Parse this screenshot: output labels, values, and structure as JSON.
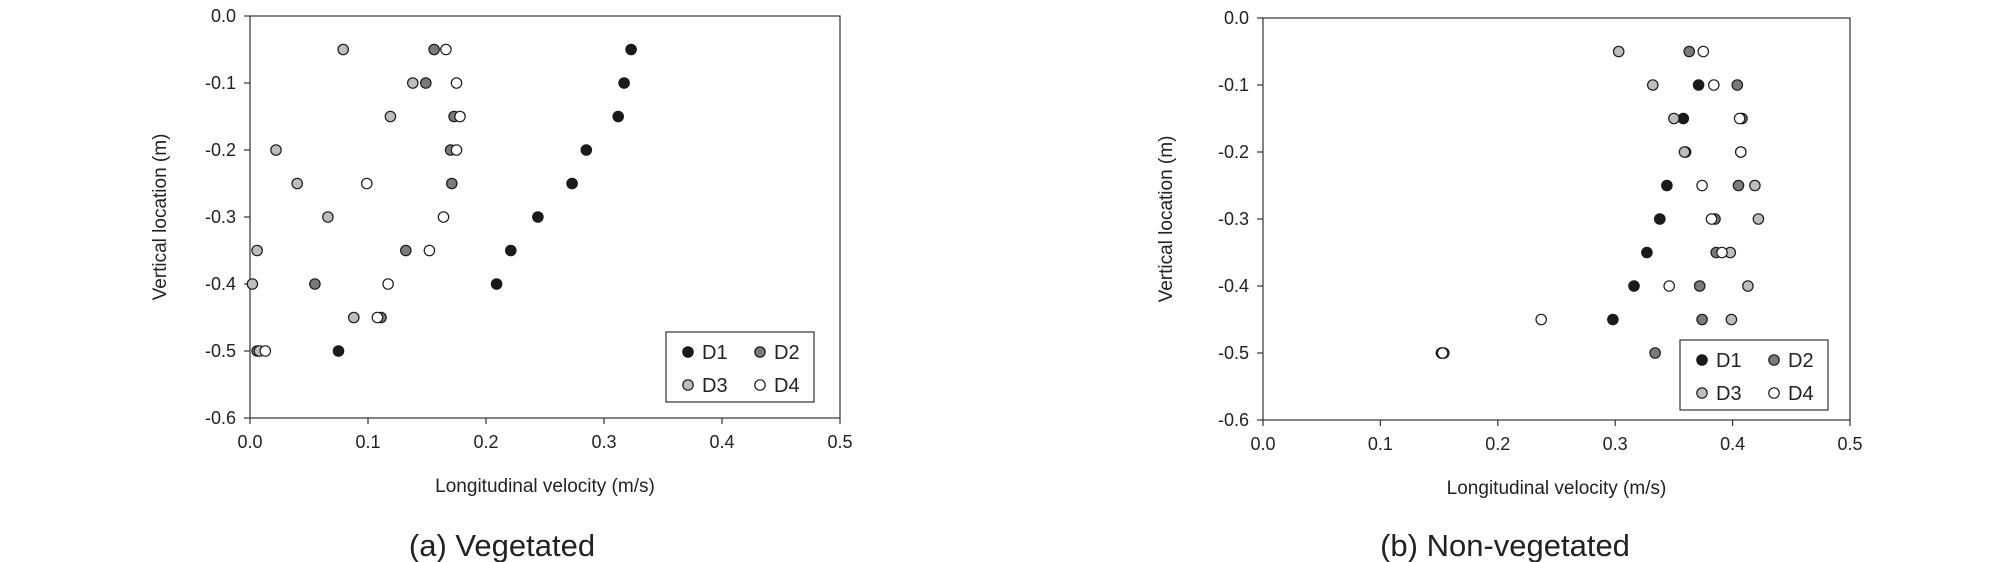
{
  "chart_data": [
    {
      "type": "scatter",
      "caption": "(a) Vegetated",
      "xlabel": "Longitudinal velocity (m/s)",
      "ylabel": "Vertical location (m)",
      "xlim": [
        0.0,
        0.5
      ],
      "ylim": [
        -0.6,
        0.0
      ],
      "xticks": [
        "0.0",
        "0.1",
        "0.2",
        "0.3",
        "0.4",
        "0.5"
      ],
      "yticks": [
        "0.0",
        "-0.1",
        "-0.2",
        "-0.3",
        "-0.4",
        "-0.5",
        "-0.6"
      ],
      "grid": false,
      "legend_position": "bottom-right",
      "series": [
        {
          "name": "D1",
          "color": "#1a1a1a",
          "y": [
            -0.05,
            -0.1,
            -0.15,
            -0.2,
            -0.25,
            -0.3,
            -0.35,
            -0.4,
            -0.5
          ],
          "x": [
            0.323,
            0.317,
            0.312,
            0.285,
            0.273,
            0.244,
            0.221,
            0.209,
            0.075
          ]
        },
        {
          "name": "D2",
          "color": "#7a7a7a",
          "y": [
            -0.05,
            -0.1,
            -0.15,
            -0.2,
            -0.25,
            -0.35,
            -0.4,
            -0.45,
            -0.5
          ],
          "x": [
            0.156,
            0.149,
            0.173,
            0.17,
            0.171,
            0.132,
            0.055,
            0.111,
            0.006
          ]
        },
        {
          "name": "D3",
          "color": "#bdbdbd",
          "y": [
            -0.05,
            -0.1,
            -0.15,
            -0.2,
            -0.25,
            -0.3,
            -0.35,
            -0.4,
            -0.45,
            -0.5
          ],
          "x": [
            0.079,
            0.138,
            0.119,
            0.022,
            0.04,
            0.066,
            0.006,
            0.002,
            0.088,
            0.008
          ]
        },
        {
          "name": "D4",
          "color": "#ffffff",
          "y": [
            -0.05,
            -0.1,
            -0.15,
            -0.2,
            -0.25,
            -0.3,
            -0.35,
            -0.4,
            -0.45,
            -0.5
          ],
          "x": [
            0.166,
            0.175,
            0.178,
            0.175,
            0.099,
            0.164,
            0.152,
            0.117,
            0.108,
            0.013
          ]
        }
      ]
    },
    {
      "type": "scatter",
      "caption": "(b) Non-vegetated",
      "xlabel": "Longitudinal velocity (m/s)",
      "ylabel": "Vertical location (m)",
      "xlim": [
        0.0,
        0.5
      ],
      "ylim": [
        -0.6,
        0.0
      ],
      "xticks": [
        "0.0",
        "0.1",
        "0.2",
        "0.3",
        "0.4",
        "0.5"
      ],
      "yticks": [
        "0.0",
        "-0.1",
        "-0.2",
        "-0.3",
        "-0.4",
        "-0.5",
        "-0.6"
      ],
      "grid": false,
      "legend_position": "bottom-right",
      "series": [
        {
          "name": "D1",
          "color": "#1a1a1a",
          "y": [
            -0.1,
            -0.15,
            -0.2,
            -0.25,
            -0.3,
            -0.35,
            -0.4,
            -0.45,
            -0.5
          ],
          "x": [
            0.371,
            0.358,
            0.36,
            0.344,
            0.338,
            0.327,
            0.316,
            0.298,
            0.152
          ]
        },
        {
          "name": "D2",
          "color": "#7a7a7a",
          "y": [
            -0.05,
            -0.1,
            -0.15,
            -0.2,
            -0.25,
            -0.3,
            -0.35,
            -0.4,
            -0.45,
            -0.5
          ],
          "x": [
            0.363,
            0.404,
            0.408,
            0.407,
            0.405,
            0.385,
            0.386,
            0.372,
            0.374,
            0.334
          ]
        },
        {
          "name": "D3",
          "color": "#bdbdbd",
          "y": [
            -0.05,
            -0.1,
            -0.15,
            -0.2,
            -0.25,
            -0.3,
            -0.35,
            -0.4,
            -0.45,
            -0.5
          ],
          "x": [
            0.303,
            0.332,
            0.35,
            0.359,
            0.419,
            0.422,
            0.398,
            0.413,
            0.399,
            0.154
          ]
        },
        {
          "name": "D4",
          "color": "#ffffff",
          "y": [
            -0.05,
            -0.1,
            -0.15,
            -0.2,
            -0.25,
            -0.3,
            -0.35,
            -0.4,
            -0.45,
            -0.5
          ],
          "x": [
            0.375,
            0.384,
            0.406,
            0.407,
            0.374,
            0.382,
            0.391,
            0.346,
            0.237,
            0.153
          ]
        }
      ]
    }
  ]
}
